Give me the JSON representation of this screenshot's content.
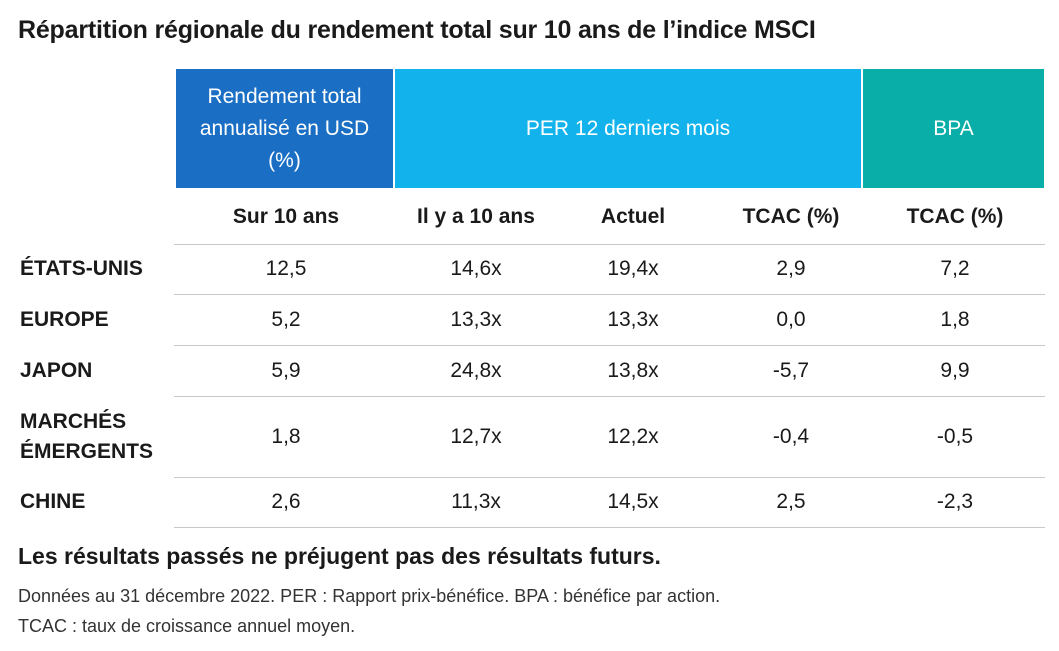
{
  "chart_data": {
    "type": "table",
    "title": "Répartition régionale du rendement total sur 10 ans de l’indice MSCI",
    "header_groups": [
      {
        "label": "Rendement total annualisé en USD (%)",
        "color": "#1a6fc4"
      },
      {
        "label": "PER 12 derniers mois",
        "color": "#12b3ec"
      },
      {
        "label": "BPA",
        "color": "#0aaea8"
      }
    ],
    "columns": [
      "Sur 10 ans",
      "Il y a 10 ans",
      "Actuel",
      "TCAC (%)",
      "TCAC (%)"
    ],
    "rows": [
      {
        "label": "ÉTATS-UNIS",
        "values": [
          "12,5",
          "14,6x",
          "19,4x",
          "2,9",
          "7,2"
        ]
      },
      {
        "label": "EUROPE",
        "values": [
          "5,2",
          "13,3x",
          "13,3x",
          "0,0",
          "1,8"
        ]
      },
      {
        "label": "JAPON",
        "values": [
          "5,9",
          "24,8x",
          "13,8x",
          "-5,7",
          "9,9"
        ]
      },
      {
        "label": "MARCHÉS ÉMERGENTS",
        "values": [
          "1,8",
          "12,7x",
          "12,2x",
          "-0,4",
          "-0,5"
        ]
      },
      {
        "label": "CHINE",
        "values": [
          "2,6",
          "11,3x",
          "14,5x",
          "2,5",
          "-2,3"
        ]
      }
    ]
  },
  "footer": {
    "disclaimer": "Les résultats passés ne préjugent pas des résultats futurs.",
    "note_line1": "Données au 31 décembre 2022. PER : Rapport prix-bénéfice. BPA : bénéfice par action.",
    "note_line2": "TCAC : taux de croissance annuel moyen."
  }
}
